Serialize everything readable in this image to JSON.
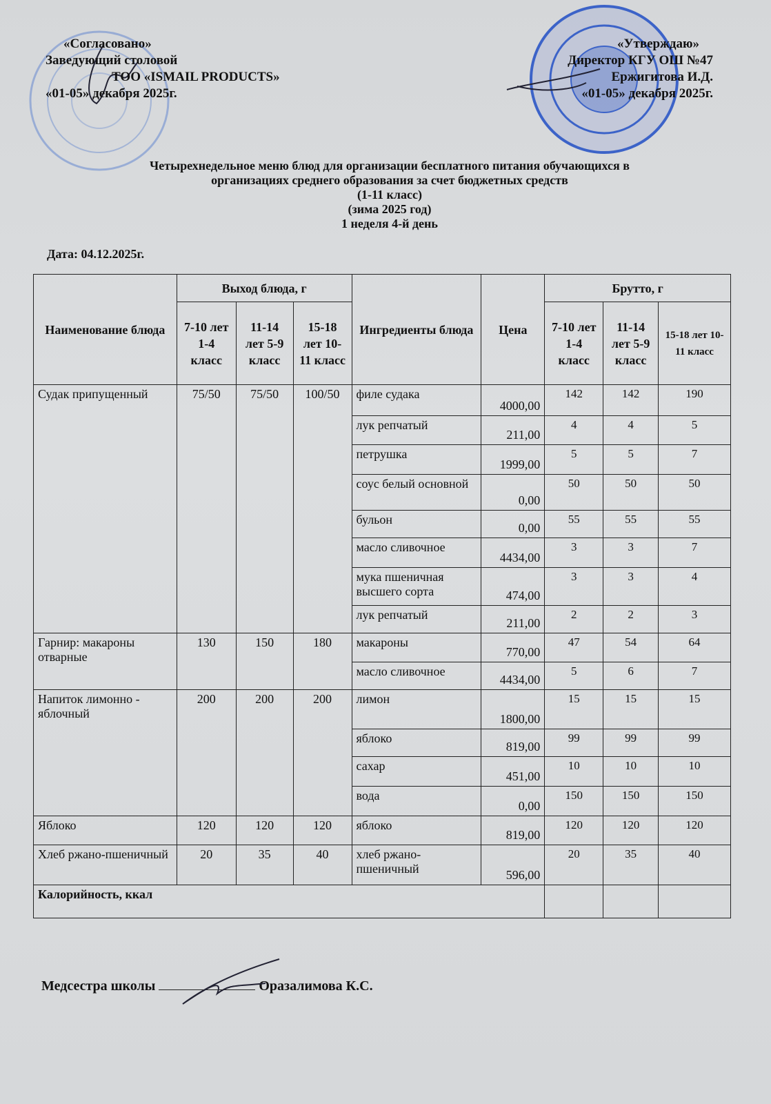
{
  "approval_left": {
    "line1": "«Согласовано»",
    "line2": "Заведующий столовой",
    "line3": "ТОО «ISMAIL PRODUCTS»",
    "line4": "«01-05» декабря 2025г."
  },
  "approval_right": {
    "line1": "«Утверждаю»",
    "line2": "Директор КГУ ОШ №47",
    "line3": "Ержигитова И.Д.",
    "line4": "«01-05» декабря  2025г."
  },
  "title": {
    "line1": "Четырехнедельное меню блюд для организации бесплатного питания обучающихся в",
    "line2": "организациях среднего образования за счет бюджетных средств",
    "line3": "(1-11 класс)",
    "line4": "(зима 2025 год)",
    "line5": "1 неделя 4-й день"
  },
  "date": "Дата: 04.12.2025г.",
  "table": {
    "headers": {
      "name": "Наименование блюда",
      "output": "Выход блюда, г",
      "ingredients": "Ингредиенты блюда",
      "price": "Цена",
      "brutto": "Брутто, г",
      "age_groups": [
        "7-10 лет 1-4 класс",
        "11-14 лет 5-9 класс",
        "15-18 лет 10-11 класс"
      ]
    },
    "dishes": [
      {
        "name": "Судак припущенный",
        "output": [
          "75/50",
          "75/50",
          "100/50"
        ],
        "ingredients": [
          {
            "name": "филе судака",
            "price": "4000,00",
            "brutto": [
              "142",
              "142",
              "190"
            ]
          },
          {
            "name": "лук репчатый",
            "price": "211,00",
            "brutto": [
              "4",
              "4",
              "5"
            ]
          },
          {
            "name": "петрушка",
            "price": "1999,00",
            "brutto": [
              "5",
              "5",
              "7"
            ]
          },
          {
            "name": "соус белый основной",
            "price": "0,00",
            "brutto": [
              "50",
              "50",
              "50"
            ]
          },
          {
            "name": "бульон",
            "price": "0,00",
            "brutto": [
              "55",
              "55",
              "55"
            ]
          },
          {
            "name": "масло сливочное",
            "price": "4434,00",
            "brutto": [
              "3",
              "3",
              "7"
            ]
          },
          {
            "name": "мука пшеничная высшего сорта",
            "price": "474,00",
            "brutto": [
              "3",
              "3",
              "4"
            ]
          },
          {
            "name": "лук репчатый",
            "price": "211,00",
            "brutto": [
              "2",
              "2",
              "3"
            ]
          }
        ]
      },
      {
        "name": "Гарнир: макароны отварные",
        "output": [
          "130",
          "150",
          "180"
        ],
        "ingredients": [
          {
            "name": "макароны",
            "price": "770,00",
            "brutto": [
              "47",
              "54",
              "64"
            ]
          },
          {
            "name": "масло сливочное",
            "price": "4434,00",
            "brutto": [
              "5",
              "6",
              "7"
            ]
          }
        ]
      },
      {
        "name": "Напиток лимонно - яблочный",
        "output": [
          "200",
          "200",
          "200"
        ],
        "ingredients": [
          {
            "name": "лимон",
            "price": "1800,00",
            "brutto": [
              "15",
              "15",
              "15"
            ]
          },
          {
            "name": "яблоко",
            "price": "819,00",
            "brutto": [
              "99",
              "99",
              "99"
            ]
          },
          {
            "name": "сахар",
            "price": "451,00",
            "brutto": [
              "10",
              "10",
              "10"
            ]
          },
          {
            "name": "вода",
            "price": "0,00",
            "brutto": [
              "150",
              "150",
              "150"
            ]
          }
        ]
      },
      {
        "name": "Яблоко",
        "output": [
          "120",
          "120",
          "120"
        ],
        "ingredients": [
          {
            "name": "яблоко",
            "price": "819,00",
            "brutto": [
              "120",
              "120",
              "120"
            ]
          }
        ]
      },
      {
        "name": "Хлеб ржано-пшеничный",
        "output": [
          "20",
          "35",
          "40"
        ],
        "ingredients": [
          {
            "name": "хлеб ржано-пшеничный",
            "price": "596,00",
            "brutto": [
              "20",
              "35",
              "40"
            ]
          }
        ]
      }
    ],
    "calories_label": "Калорийность, ккал"
  },
  "footer": {
    "role": "Медсестра школы",
    "name": "Оразалимова К.С."
  },
  "colors": {
    "stamp": "#3c63c8",
    "ink": "#111111",
    "paper": "#d8dadc"
  }
}
